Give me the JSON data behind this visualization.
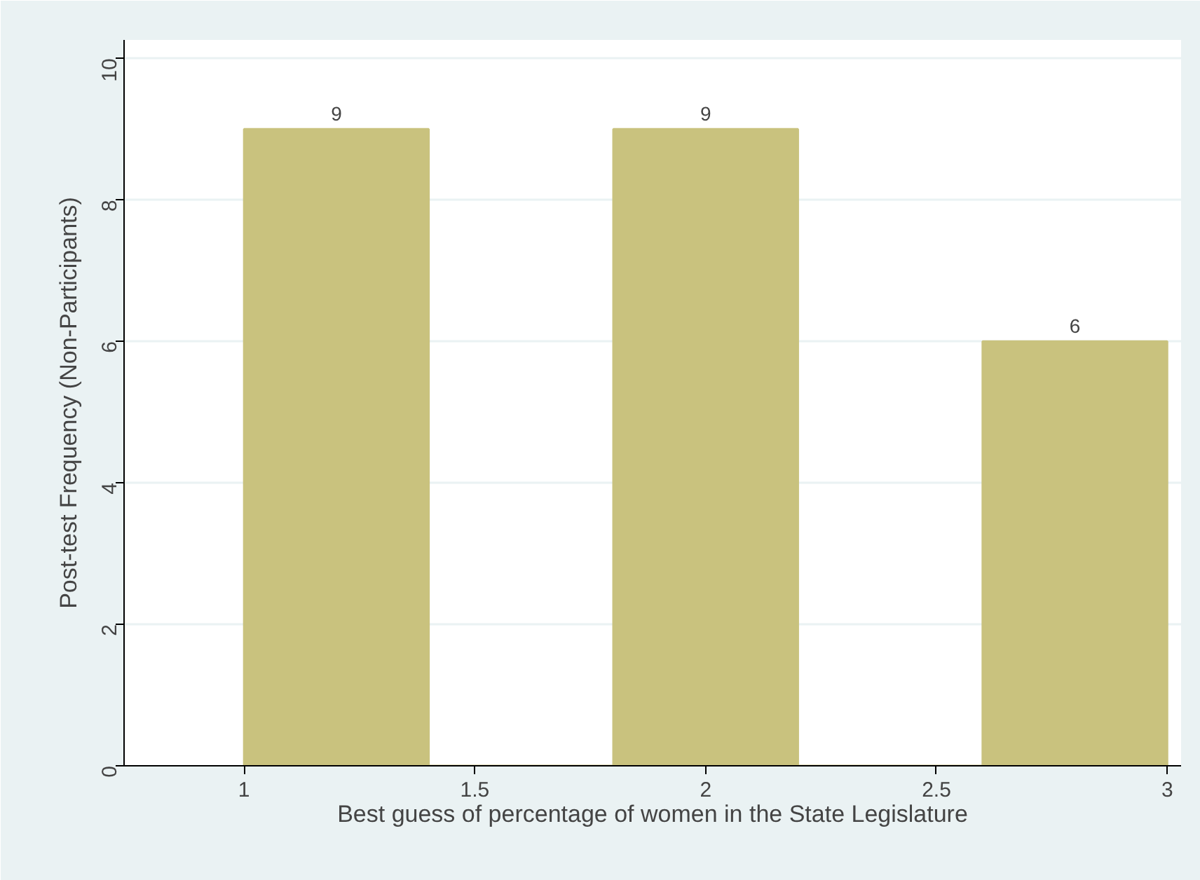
{
  "chart_data": {
    "type": "histogram",
    "xlabel": "Best guess of percentage of women in the State Legislature",
    "ylabel": "Post-test Frequency (Non-Participants)",
    "bins": [
      1,
      1.4,
      1.8,
      2.2,
      2.6,
      3
    ],
    "values": [
      9,
      0,
      9,
      0,
      6
    ],
    "value_labels": [
      "9",
      null,
      "9",
      null,
      "6"
    ],
    "color": "#c9c27e",
    "xlim": [
      0.74,
      3.03
    ],
    "xticks": [
      1,
      1.5,
      2,
      2.5,
      3
    ],
    "ylim": [
      0,
      10.26
    ],
    "yticks": [
      0,
      2,
      4,
      6,
      8,
      10
    ],
    "grid": "y"
  }
}
